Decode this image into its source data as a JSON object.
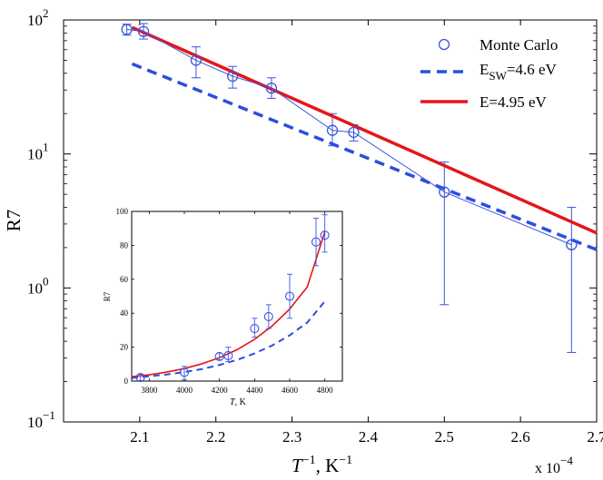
{
  "chart_data": [
    {
      "name": "main",
      "type": "line",
      "xlabel_main": "T",
      "xlabel_sup": "−1",
      "xlabel_unit": ", K",
      "xlabel_unit_sup": "−1",
      "ylabel": "R7",
      "yscale": "log",
      "xlim": [
        2.0,
        2.7
      ],
      "ylim_log10": [
        -1,
        2
      ],
      "xticks": [
        2.1,
        2.2,
        2.3,
        2.4,
        2.5,
        2.6,
        2.7
      ],
      "xtick_labels": [
        "2.1",
        "2.2",
        "2.3",
        "2.4",
        "2.5",
        "2.6",
        "2.7"
      ],
      "ytick_exponents": [
        -1,
        0,
        1,
        2
      ],
      "ytick_base": "10",
      "x_multiplier_base": "x 10",
      "x_multiplier_exp": "−4",
      "legend_position": "top-right",
      "series": [
        {
          "name": "Monte Carlo",
          "color": "#3b55e0",
          "style": "markers-line",
          "x": [
            2.083,
            2.105,
            2.174,
            2.222,
            2.273,
            2.353,
            2.381,
            2.5,
            2.667
          ],
          "y": [
            85,
            82,
            50,
            38,
            31,
            15,
            14.5,
            5.2,
            2.1
          ],
          "err_low": [
            77,
            72,
            37,
            31,
            26,
            11.5,
            12.5,
            0.75,
            0.33
          ],
          "err_high": [
            93,
            94,
            63,
            45,
            37,
            20,
            16.5,
            8.7,
            4.0
          ]
        },
        {
          "name": "E",
          "subscript": "SW",
          "suffix": "=4.6 eV",
          "color": "#2d4de0",
          "style": "dashed",
          "x": [
            2.09,
            2.7
          ],
          "y": [
            47,
            1.93
          ]
        },
        {
          "name": "E=4.95 eV",
          "color": "#e4161a",
          "style": "solid",
          "x": [
            2.09,
            2.7
          ],
          "y": [
            88,
            2.57
          ]
        }
      ]
    },
    {
      "name": "inset",
      "type": "line",
      "xlabel_italic": "T",
      "xlabel_rest": ", K",
      "ylabel": "R7",
      "xlim": [
        3700,
        4900
      ],
      "ylim": [
        0,
        100
      ],
      "xticks": [
        3800,
        4000,
        4200,
        4400,
        4600,
        4800
      ],
      "xtick_labels": [
        "3800",
        "4000",
        "4200",
        "4400",
        "4600",
        "4800"
      ],
      "yticks": [
        0,
        20,
        40,
        60,
        80,
        100
      ],
      "ytick_labels": [
        "0",
        "20",
        "40",
        "60",
        "80",
        "100"
      ],
      "series": [
        {
          "name": "Monte Carlo",
          "color": "#3b55e0",
          "style": "markers",
          "x": [
            3750,
            4000,
            4200,
            4250,
            4400,
            4480,
            4600,
            4750,
            4800
          ],
          "y": [
            2.1,
            5.2,
            14.5,
            15,
            31,
            38,
            50,
            82,
            86
          ],
          "err_low": [
            0.33,
            0.75,
            12.5,
            11.5,
            26,
            31,
            37,
            68,
            76
          ],
          "err_high": [
            4.0,
            8.7,
            16.5,
            20,
            37,
            45,
            63,
            96,
            98
          ]
        },
        {
          "name": "E_SW=4.6 eV",
          "color": "#2d4de0",
          "style": "dashed",
          "x": [
            3700,
            3800,
            3900,
            4000,
            4100,
            4200,
            4300,
            4400,
            4500,
            4600,
            4700,
            4800
          ],
          "y": [
            1.9,
            2.8,
            3.9,
            5.3,
            7.1,
            9.5,
            12.5,
            16.3,
            21.0,
            27.0,
            34.5,
            47.0
          ]
        },
        {
          "name": "E=4.95 eV",
          "color": "#e4161a",
          "style": "solid",
          "x": [
            3700,
            3800,
            3900,
            4000,
            4100,
            4200,
            4300,
            4400,
            4500,
            4600,
            4700,
            4800
          ],
          "y": [
            2.6,
            3.7,
            5.3,
            7.4,
            10.2,
            13.8,
            18.5,
            24.6,
            32.5,
            42.5,
            55.5,
            88.0
          ]
        }
      ]
    }
  ]
}
